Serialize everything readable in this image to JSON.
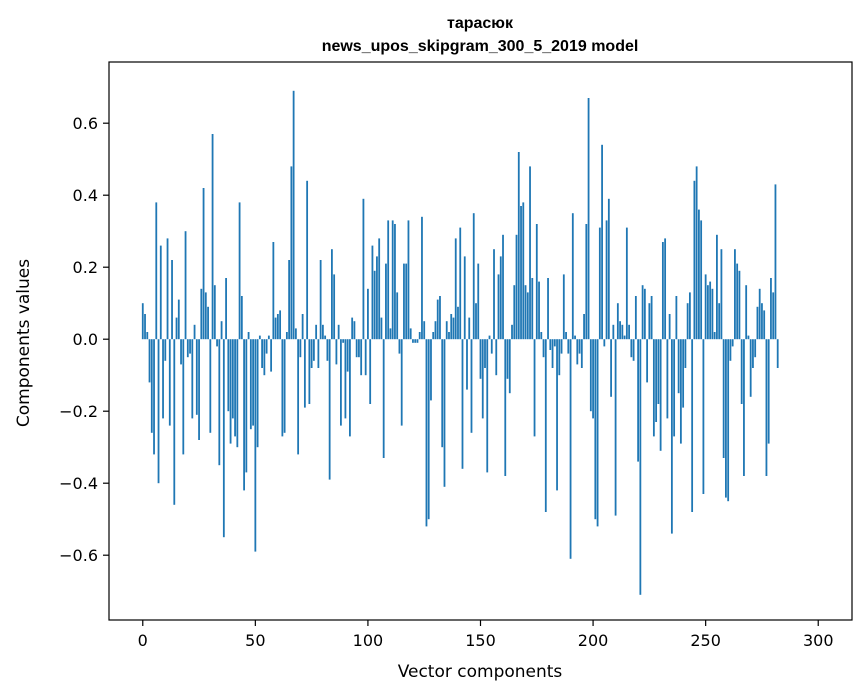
{
  "chart_data": {
    "type": "bar",
    "title_line1": "тарасюк",
    "title_line2": "news_upos_skipgram_300_5_2019 model",
    "xlabel": "Vector components",
    "ylabel": "Components values",
    "xlim": [
      -15,
      315
    ],
    "ylim": [
      -0.78,
      0.77
    ],
    "xticks": [
      0,
      50,
      100,
      150,
      200,
      250,
      300
    ],
    "xtick_labels": [
      "0",
      "50",
      "100",
      "150",
      "200",
      "250",
      "300"
    ],
    "yticks": [
      -0.6,
      -0.4,
      -0.2,
      0.0,
      0.2,
      0.4,
      0.6
    ],
    "ytick_labels": [
      "−0.6",
      "−0.4",
      "−0.2",
      "0.0",
      "0.2",
      "0.4",
      "0.6"
    ],
    "bar_color": "#1f77b4",
    "grid": false,
    "values": [
      0.1,
      0.07,
      0.02,
      -0.12,
      -0.26,
      -0.32,
      0.38,
      -0.4,
      0.26,
      -0.22,
      -0.06,
      0.28,
      -0.24,
      0.22,
      -0.46,
      0.06,
      0.11,
      -0.07,
      -0.32,
      0.3,
      -0.05,
      -0.04,
      -0.22,
      0.04,
      -0.21,
      -0.28,
      0.14,
      0.42,
      0.13,
      0.09,
      -0.26,
      0.57,
      0.15,
      -0.02,
      -0.35,
      0.05,
      -0.55,
      0.17,
      -0.2,
      -0.29,
      -0.22,
      -0.27,
      -0.3,
      0.38,
      0.12,
      -0.42,
      -0.37,
      0.02,
      -0.25,
      -0.24,
      -0.59,
      -0.3,
      0.01,
      -0.08,
      -0.1,
      -0.04,
      0.01,
      -0.09,
      0.27,
      0.06,
      0.07,
      0.08,
      -0.27,
      -0.26,
      0.02,
      0.22,
      0.48,
      0.69,
      0.03,
      -0.32,
      -0.05,
      0.07,
      -0.19,
      0.44,
      -0.18,
      -0.08,
      -0.06,
      0.04,
      -0.08,
      0.22,
      0.04,
      0.01,
      -0.06,
      -0.39,
      0.25,
      0.18,
      -0.07,
      0.04,
      -0.24,
      -0.01,
      -0.22,
      -0.09,
      -0.27,
      0.06,
      0.05,
      -0.05,
      -0.05,
      -0.1,
      0.39,
      -0.1,
      0.14,
      -0.18,
      0.26,
      0.19,
      0.23,
      0.28,
      0.06,
      -0.33,
      0.21,
      0.33,
      0.03,
      0.33,
      0.32,
      0.13,
      -0.04,
      -0.24,
      0.21,
      0.21,
      0.33,
      0.03,
      -0.01,
      -0.01,
      -0.01,
      0.02,
      0.34,
      0.05,
      -0.52,
      -0.5,
      -0.17,
      0.02,
      0.05,
      0.11,
      0.12,
      -0.3,
      -0.41,
      0.05,
      0.02,
      0.07,
      0.06,
      0.28,
      0.09,
      0.31,
      -0.36,
      0.23,
      -0.14,
      0.06,
      -0.26,
      0.35,
      0.1,
      0.21,
      -0.11,
      -0.22,
      -0.08,
      -0.37,
      0.01,
      -0.04,
      0.25,
      -0.1,
      0.18,
      0.23,
      0.29,
      -0.38,
      -0.11,
      -0.15,
      0.04,
      0.15,
      0.29,
      0.52,
      0.37,
      0.38,
      0.15,
      0.13,
      0.48,
      0.17,
      -0.27,
      0.32,
      0.16,
      0.02,
      -0.05,
      -0.48,
      0.17,
      -0.03,
      -0.08,
      -0.02,
      -0.42,
      -0.1,
      -0.04,
      0.18,
      0.02,
      -0.04,
      -0.61,
      0.35,
      0.01,
      -0.07,
      -0.04,
      -0.08,
      0.07,
      0.32,
      0.67,
      -0.2,
      -0.22,
      -0.5,
      -0.52,
      0.31,
      0.54,
      -0.02,
      0.33,
      0.39,
      -0.16,
      0.04,
      -0.49,
      0.1,
      0.05,
      0.04,
      0.01,
      0.31,
      0.04,
      -0.05,
      -0.06,
      0.12,
      -0.34,
      -0.71,
      0.15,
      0.14,
      -0.12,
      0.1,
      0.12,
      -0.27,
      -0.23,
      -0.18,
      -0.31,
      0.27,
      0.28,
      -0.22,
      0.07,
      -0.54,
      -0.27,
      0.12,
      -0.15,
      -0.29,
      -0.19,
      -0.08,
      0.1,
      0.13,
      -0.48,
      0.44,
      0.48,
      0.36,
      0.33,
      -0.43,
      0.18,
      0.15,
      0.16,
      0.14,
      0.02,
      0.29,
      0.1,
      0.25,
      -0.33,
      -0.44,
      -0.45,
      -0.06,
      -0.02,
      0.25,
      0.21,
      0.19,
      -0.18,
      -0.38,
      0.15,
      0.01,
      -0.16,
      -0.08,
      -0.05,
      0.09,
      0.14,
      0.1,
      0.08,
      -0.38,
      -0.29,
      0.17,
      0.13,
      0.43,
      -0.08
    ]
  }
}
